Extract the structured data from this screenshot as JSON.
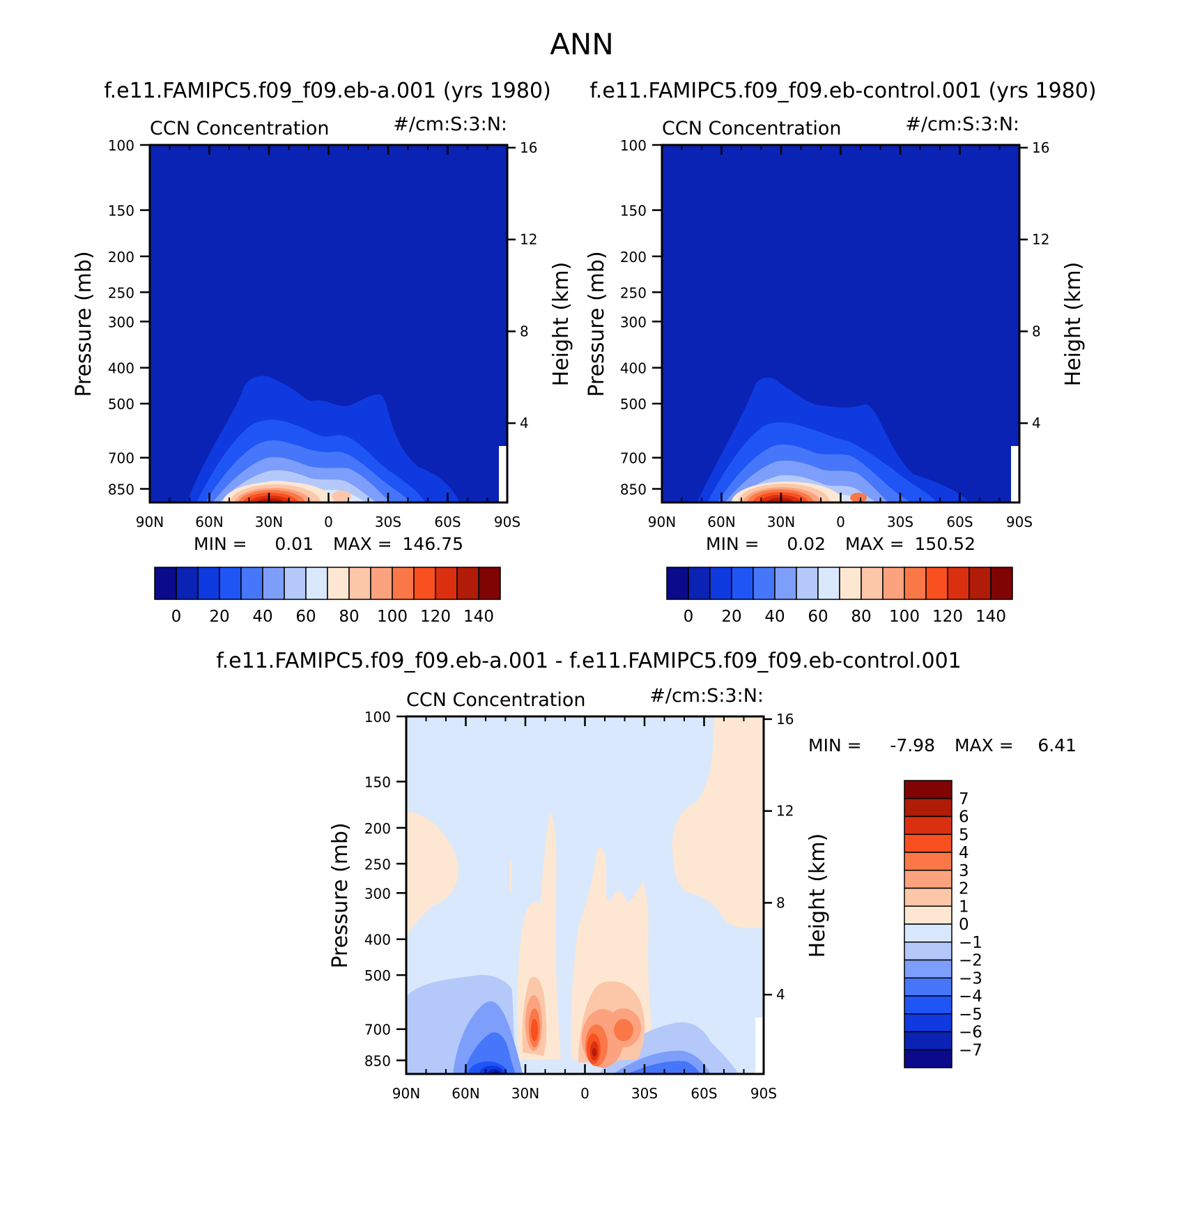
{
  "chart_data": {
    "type": "contour",
    "title": "ANN",
    "panels": [
      {
        "id": "a",
        "title": "f.e11.FAMIPC5.f09_f09.eb-a.001 (yrs 1980)",
        "left_label": "CCN Concentration",
        "right_label": "#/cm:S:3:N:",
        "xlabel": "",
        "ylabel": "Pressure (mb)",
        "ylabel_right": "Height (km)",
        "x_ticks": [
          "90N",
          "60N",
          "30N",
          "0",
          "30S",
          "60S",
          "90S"
        ],
        "x_values": [
          90,
          60,
          30,
          0,
          -30,
          -60,
          -90
        ],
        "y_ticks": [
          "100",
          "150",
          "200",
          "250",
          "300",
          "400",
          "500",
          "700",
          "850"
        ],
        "y_values": [
          100,
          150,
          200,
          250,
          300,
          400,
          500,
          700,
          850
        ],
        "y_range": [
          100,
          925
        ],
        "height_ticks": [
          "16",
          "12",
          "8",
          "4"
        ],
        "height_values": [
          16,
          12,
          8,
          4
        ],
        "min_label": "MIN =",
        "min_value": "0.01",
        "max_label": "MAX =",
        "max_value": "146.75",
        "peak": {
          "lat": 30,
          "pressure": 880,
          "value": 146.75
        },
        "colorbar_levels": [
          -10,
          0,
          10,
          20,
          30,
          40,
          50,
          60,
          70,
          80,
          90,
          100,
          110,
          120,
          130,
          140,
          150
        ],
        "colorbar_labels": [
          "0",
          "20",
          "40",
          "60",
          "80",
          "100",
          "120",
          "140"
        ]
      },
      {
        "id": "b",
        "title": "f.e11.FAMIPC5.f09_f09.eb-control.001 (yrs 1980)",
        "left_label": "CCN Concentration",
        "right_label": "#/cm:S:3:N:",
        "xlabel": "",
        "ylabel": "Pressure (mb)",
        "ylabel_right": "Height (km)",
        "x_ticks": [
          "90N",
          "60N",
          "30N",
          "0",
          "30S",
          "60S",
          "90S"
        ],
        "x_values": [
          90,
          60,
          30,
          0,
          -30,
          -60,
          -90
        ],
        "y_ticks": [
          "100",
          "150",
          "200",
          "250",
          "300",
          "400",
          "500",
          "700",
          "850"
        ],
        "y_values": [
          100,
          150,
          200,
          250,
          300,
          400,
          500,
          700,
          850
        ],
        "y_range": [
          100,
          925
        ],
        "height_ticks": [
          "16",
          "12",
          "8",
          "4"
        ],
        "height_values": [
          16,
          12,
          8,
          4
        ],
        "min_label": "MIN =",
        "min_value": "0.02",
        "max_label": "MAX =",
        "max_value": "150.52",
        "peak": {
          "lat": 30,
          "pressure": 880,
          "value": 150.52
        },
        "colorbar_levels": [
          -10,
          0,
          10,
          20,
          30,
          40,
          50,
          60,
          70,
          80,
          90,
          100,
          110,
          120,
          130,
          140,
          150
        ],
        "colorbar_labels": [
          "0",
          "20",
          "40",
          "60",
          "80",
          "100",
          "120",
          "140"
        ]
      },
      {
        "id": "diff",
        "title": "f.e11.FAMIPC5.f09_f09.eb-a.001 - f.e11.FAMIPC5.f09_f09.eb-control.001",
        "left_label": "CCN Concentration",
        "right_label": "#/cm:S:3:N:",
        "xlabel": "",
        "ylabel": "Pressure (mb)",
        "ylabel_right": "Height (km)",
        "x_ticks": [
          "90N",
          "60N",
          "30N",
          "0",
          "30S",
          "60S",
          "90S"
        ],
        "x_values": [
          90,
          60,
          30,
          0,
          -30,
          -60,
          -90
        ],
        "y_ticks": [
          "100",
          "150",
          "200",
          "250",
          "300",
          "400",
          "500",
          "700",
          "850"
        ],
        "y_values": [
          100,
          150,
          200,
          250,
          300,
          400,
          500,
          700,
          850
        ],
        "y_range": [
          100,
          925
        ],
        "height_ticks": [
          "16",
          "12",
          "8",
          "4"
        ],
        "height_values": [
          16,
          12,
          8,
          4
        ],
        "min_label": "MIN =",
        "min_value": "-7.98",
        "max_label": "MAX =",
        "max_value": "6.41",
        "colorbar_levels": [
          -8,
          -7,
          -6,
          -5,
          -4,
          -3,
          -2,
          -1,
          0,
          1,
          2,
          3,
          4,
          5,
          6,
          7,
          8
        ],
        "colorbar_labels": [
          "7",
          "6",
          "5",
          "4",
          "3",
          "2",
          "1",
          "0",
          "-1",
          "-2",
          "-3",
          "-4",
          "-5",
          "-6",
          "-7"
        ]
      }
    ],
    "colors": {
      "seq": [
        "#0a0a8a",
        "#0a23b4",
        "#0f3ae0",
        "#1f55f5",
        "#4676fa",
        "#7d9efa",
        "#b4c9fa",
        "#d9e8fc",
        "#fde7d2",
        "#fcc7a9",
        "#fca27e",
        "#fa7848",
        "#f95020",
        "#db3010",
        "#b01c08",
        "#800404"
      ]
    }
  }
}
